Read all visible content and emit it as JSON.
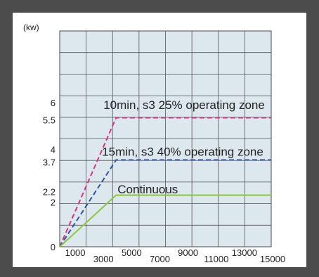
{
  "chart_data": {
    "type": "line",
    "title": "",
    "xlabel": "",
    "ylabel": "(kw)",
    "xlim": [
      0,
      15000
    ],
    "ylim": [
      0,
      9.2
    ],
    "grid": true,
    "background": "#dde7ee",
    "x_ticks": [
      {
        "value": 1000,
        "label": "1000",
        "row": "upper"
      },
      {
        "value": 3000,
        "label": "3000",
        "row": "lower"
      },
      {
        "value": 5000,
        "label": "5000",
        "row": "upper"
      },
      {
        "value": 7000,
        "label": "7000",
        "row": "lower"
      },
      {
        "value": 9000,
        "label": "9000",
        "row": "upper"
      },
      {
        "value": 11000,
        "label": "11000",
        "row": "lower"
      },
      {
        "value": 13000,
        "label": "13000",
        "row": "upper"
      },
      {
        "value": 15000,
        "label": "15000",
        "row": "lower"
      }
    ],
    "y_ticks": [
      {
        "value": 0,
        "label": "0"
      },
      {
        "value": 2,
        "label": "2"
      },
      {
        "value": 2.2,
        "label": "2.2"
      },
      {
        "value": 3.7,
        "label": "3.7"
      },
      {
        "value": 4,
        "label": "4"
      },
      {
        "value": 5.5,
        "label": "5.5"
      },
      {
        "value": 6,
        "label": "6"
      }
    ],
    "series": [
      {
        "key": "s3-25",
        "name": "10min, s3 25% operating zone",
        "color": "#d63384",
        "dashed": true,
        "x": [
          0,
          4000,
          15000
        ],
        "y": [
          0,
          5.5,
          5.5
        ]
      },
      {
        "key": "s3-40",
        "name": "15min, s3 40% operating zone",
        "color": "#2f55a4",
        "dashed": true,
        "x": [
          0,
          4000,
          15000
        ],
        "y": [
          0,
          3.7,
          3.7
        ]
      },
      {
        "key": "continuous",
        "name": "Continuous",
        "color": "#8cc63f",
        "dashed": false,
        "x": [
          0,
          4000,
          15000
        ],
        "y": [
          0,
          2.2,
          2.2
        ]
      }
    ]
  }
}
